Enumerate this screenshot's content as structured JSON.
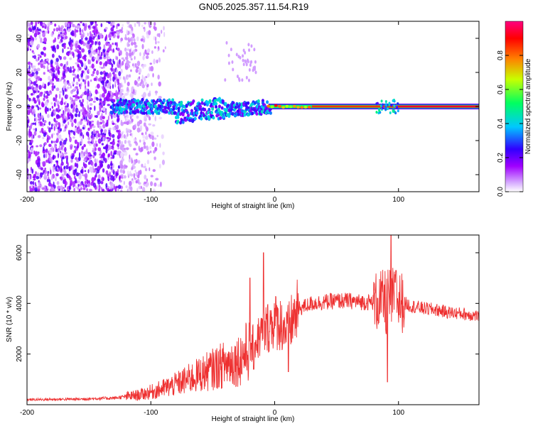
{
  "chart_data": [
    {
      "type": "heatmap",
      "title": "GN05.2025.357.11.54.R19",
      "xlabel": "Height of straight line (km)",
      "ylabel": "Frequency (Hz)",
      "xlim": [
        -200,
        165
      ],
      "ylim": [
        -50,
        50
      ],
      "xticks": [
        -200,
        -100,
        0,
        100
      ],
      "yticks": [
        -40,
        -20,
        0,
        20,
        40
      ],
      "colorbar": {
        "label": "Normalized spectral amplitude",
        "range": [
          0,
          1
        ],
        "ticks": [
          "0.0",
          "0.2",
          "0.4",
          "0.6",
          "0.8"
        ],
        "colors": [
          "#ffffff",
          "#a000ff",
          "#3000ff",
          "#00c8ff",
          "#00ff60",
          "#c8ff00",
          "#ff8000",
          "#ff0000",
          "#ff0080"
        ]
      },
      "description_points": {
        "noise_region_x": [
          -200,
          -85
        ],
        "signal_line_frequency_hz": 0,
        "signal_start_km": -130,
        "strong_signal_start_km": -5
      }
    },
    {
      "type": "line",
      "xlabel": "Height of straight line (km)",
      "ylabel": "SNR (10 * v/v)",
      "xlim": [
        -200,
        165
      ],
      "ylim": [
        0,
        6700
      ],
      "xticks": [
        -200,
        -100,
        0,
        100
      ],
      "yticks": [
        2000,
        4000,
        6000
      ],
      "color": "#ee3030",
      "envelope": {
        "x": [
          -200,
          -160,
          -130,
          -110,
          -95,
          -80,
          -65,
          -50,
          -40,
          -30,
          -20,
          -12,
          -5,
          0,
          5,
          10,
          15,
          20,
          30,
          40,
          50,
          60,
          70,
          80,
          88,
          92,
          96,
          100,
          110,
          120,
          130,
          140,
          150,
          165
        ],
        "y": [
          200,
          220,
          260,
          380,
          560,
          800,
          1100,
          1400,
          1600,
          1750,
          2200,
          2700,
          3100,
          3300,
          3200,
          2900,
          3400,
          3800,
          4000,
          4050,
          4100,
          4100,
          4050,
          4050,
          4100,
          4150,
          4200,
          4100,
          3900,
          3800,
          3750,
          3650,
          3600,
          3500
        ]
      },
      "spikes": [
        {
          "x": -20,
          "y": 5000
        },
        {
          "x": -17,
          "y": 1400
        },
        {
          "x": -9,
          "y": 6000
        },
        {
          "x": 11,
          "y": 1300
        },
        {
          "x": 90,
          "y": 2800
        },
        {
          "x": 91,
          "y": 900
        },
        {
          "x": 94,
          "y": 6700
        },
        {
          "x": 98,
          "y": 5300
        }
      ]
    }
  ]
}
